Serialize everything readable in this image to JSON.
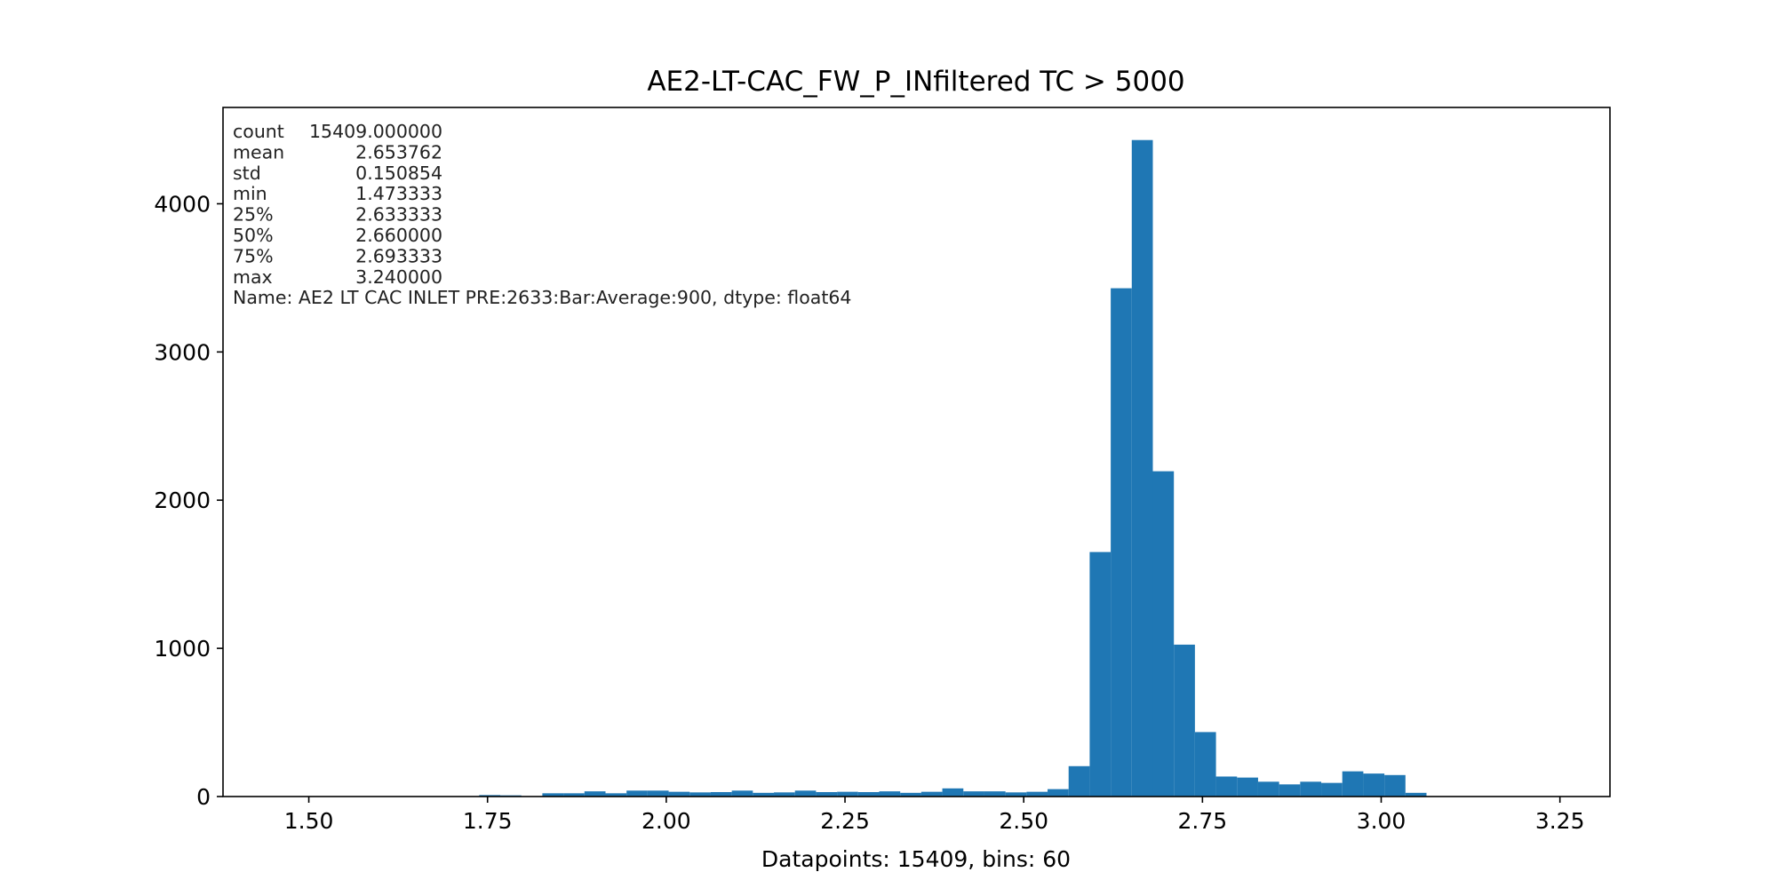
{
  "chart_data": {
    "type": "bar",
    "title": "AE2-LT-CAC_FW_P_INfiltered TC > 5000",
    "xlabel": "Datapoints: 15409, bins: 60",
    "ylabel": "",
    "xlim": [
      1.38,
      3.32
    ],
    "ylim": [
      0,
      4650
    ],
    "x_ticks": [
      {
        "value": 1.5,
        "label": "1.50"
      },
      {
        "value": 1.75,
        "label": "1.75"
      },
      {
        "value": 2.0,
        "label": "2.00"
      },
      {
        "value": 2.25,
        "label": "2.25"
      },
      {
        "value": 2.5,
        "label": "2.50"
      },
      {
        "value": 2.75,
        "label": "2.75"
      },
      {
        "value": 3.0,
        "label": "3.00"
      },
      {
        "value": 3.25,
        "label": "3.25"
      }
    ],
    "y_ticks": [
      {
        "value": 0,
        "label": "0"
      },
      {
        "value": 1000,
        "label": "1000"
      },
      {
        "value": 2000,
        "label": "2000"
      },
      {
        "value": 3000,
        "label": "3000"
      },
      {
        "value": 4000,
        "label": "4000"
      }
    ],
    "bar_color": "#1f77b4",
    "bin_start": 1.473333,
    "bin_width": 0.029445,
    "values": [
      1,
      0,
      0,
      0,
      0,
      0,
      0,
      0,
      0,
      10,
      8,
      2,
      22,
      22,
      35,
      22,
      40,
      40,
      32,
      28,
      30,
      40,
      25,
      28,
      40,
      30,
      32,
      30,
      35,
      25,
      32,
      55,
      35,
      35,
      28,
      32,
      50,
      205,
      1650,
      3430,
      4430,
      2195,
      1025,
      435,
      135,
      128,
      100,
      82,
      100,
      92,
      170,
      155,
      145,
      25,
      0,
      0,
      0,
      0,
      0,
      1
    ],
    "annotation": [
      {
        "key": "count",
        "value": "15409.000000"
      },
      {
        "key": "mean",
        "value": "2.653762"
      },
      {
        "key": "std",
        "value": "0.150854"
      },
      {
        "key": "min",
        "value": "1.473333"
      },
      {
        "key": "25%",
        "value": "2.633333"
      },
      {
        "key": "50%",
        "value": "2.660000"
      },
      {
        "key": "75%",
        "value": "2.693333"
      },
      {
        "key": "max",
        "value": "3.240000"
      }
    ],
    "annotation_footer": "Name: AE2 LT CAC INLET PRE:2633:Bar:Average:900, dtype: float64"
  }
}
